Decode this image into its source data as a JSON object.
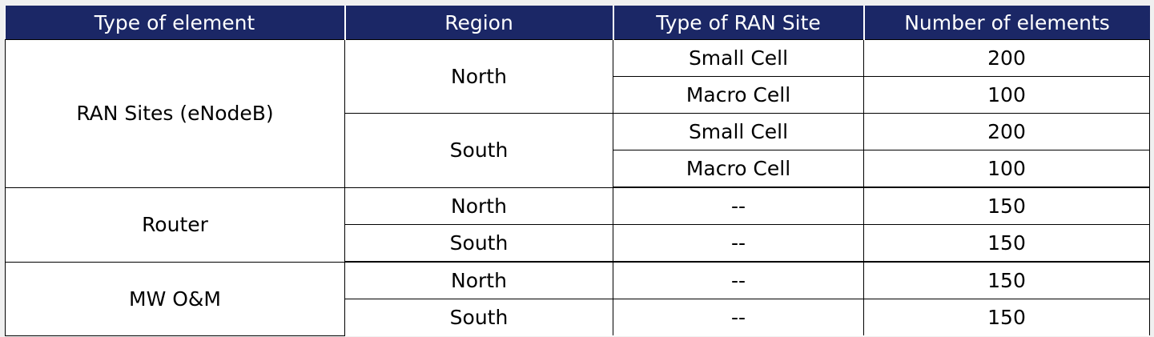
{
  "table": {
    "headers": [
      "Type of element",
      "Region",
      "Type of RAN Site",
      "Number of elements"
    ],
    "groups": [
      {
        "type": "RAN Sites (eNodeB)",
        "regions": [
          {
            "region": "North",
            "rows": [
              {
                "site": "Small Cell",
                "count": "200"
              },
              {
                "site": "Macro Cell",
                "count": "100"
              }
            ]
          },
          {
            "region": "South",
            "rows": [
              {
                "site": "Small Cell",
                "count": "200"
              },
              {
                "site": "Macro Cell",
                "count": "100"
              }
            ]
          }
        ]
      },
      {
        "type": "Router",
        "regions": [
          {
            "region": "North",
            "rows": [
              {
                "site": "--",
                "count": "150"
              }
            ]
          },
          {
            "region": "South",
            "rows": [
              {
                "site": "--",
                "count": "150"
              }
            ]
          }
        ]
      },
      {
        "type": "MW O&M",
        "regions": [
          {
            "region": "North",
            "rows": [
              {
                "site": "--",
                "count": "150"
              }
            ]
          },
          {
            "region": "South",
            "rows": [
              {
                "site": "--",
                "count": "150"
              }
            ]
          }
        ]
      }
    ]
  },
  "colors": {
    "header_bg": "#1b2766",
    "header_text": "#ffffff",
    "cell_bg": "#ffffff",
    "page_bg": "#f0f0f0",
    "grid": "#000000"
  }
}
